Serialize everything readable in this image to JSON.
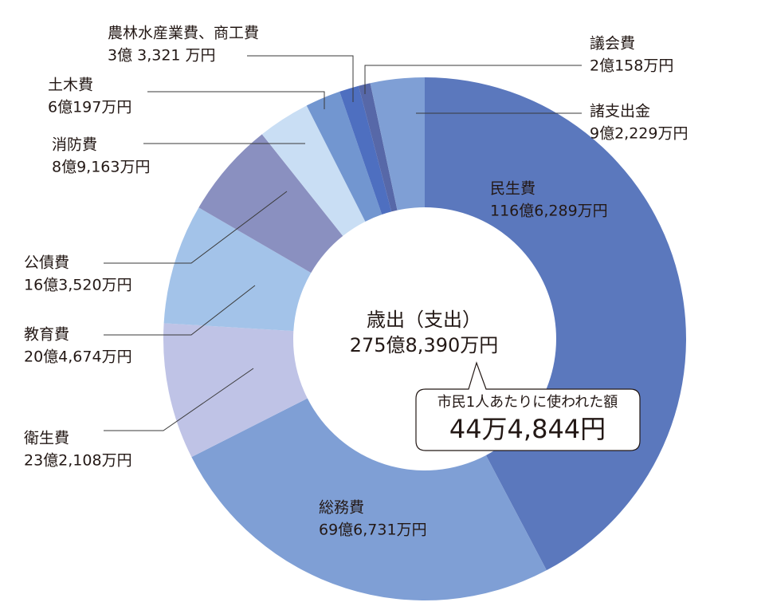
{
  "chart_data": {
    "type": "donut",
    "title": "歳出（支出）",
    "subtitle": "275億8,390万円",
    "annotation": {
      "label": "市民1人あたりに使われた額",
      "value": "44万4,844円"
    },
    "categories": [
      "民生費",
      "総務費",
      "衛生費",
      "教育費",
      "公債費",
      "消防費",
      "土木費",
      "農林水産業費、商工費",
      "議会費",
      "諸支出金"
    ],
    "values": [
      1166289,
      696731,
      232108,
      204674,
      163520,
      89163,
      60197,
      33321,
      20158,
      92229
    ],
    "value_labels": [
      "116億6,289万円",
      "69億6,731万円",
      "23億2,108万円",
      "20億4,674万円",
      "16億3,520万円",
      "8億9,163万円",
      "6億197万円",
      "3億 3,321 万円",
      "2億158万円",
      "9億2,229万円"
    ],
    "colors": [
      "#5b78bd",
      "#7f9fd5",
      "#bfc3e6",
      "#a3c3e9",
      "#8a90c0",
      "#c9def4",
      "#7296d0",
      "#4e6fc0",
      "#5768a8",
      "#7f9fd5"
    ]
  }
}
